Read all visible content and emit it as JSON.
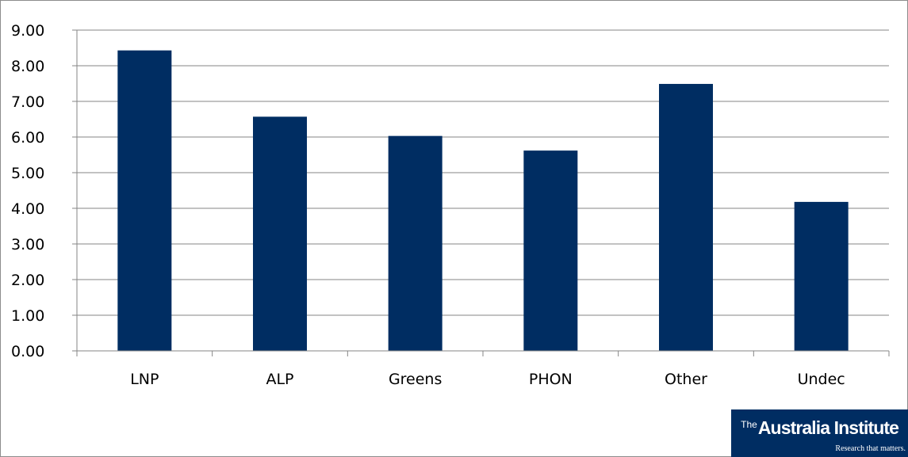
{
  "chart_data": {
    "type": "bar",
    "categories": [
      "LNP",
      "ALP",
      "Greens",
      "PHON",
      "Other",
      "Undec"
    ],
    "values": [
      8.43,
      6.57,
      6.03,
      5.62,
      7.49,
      4.18
    ],
    "title": "",
    "xlabel": "",
    "ylabel": "",
    "ylim": [
      0,
      9
    ],
    "y_ticks": [
      "0.00",
      "1.00",
      "2.00",
      "3.00",
      "4.00",
      "5.00",
      "6.00",
      "7.00",
      "8.00",
      "9.00"
    ],
    "grid": true,
    "legend": "none",
    "bar_color": "#002d62"
  },
  "logo": {
    "prefix": "The",
    "name": "Australia Institute",
    "tagline": "Research that matters."
  }
}
